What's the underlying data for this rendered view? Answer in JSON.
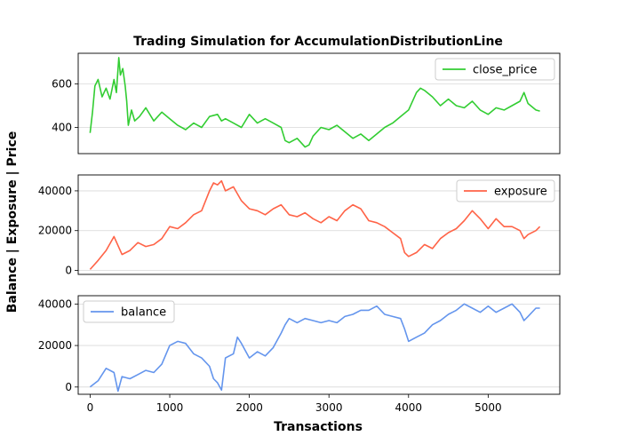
{
  "chart_data": {
    "type": "line",
    "title": "Trading Simulation for AccumulationDistributionLine",
    "xlabel": "Transactions",
    "ylabel": "Balance | Exposure | Price",
    "xlim": [
      -150,
      5900
    ],
    "xticks": [
      0,
      1000,
      2000,
      3000,
      4000,
      5000
    ],
    "grid": "horizontal",
    "panels": [
      {
        "series_name": "close_price",
        "color": "#32cd32",
        "legend": "top-right",
        "ylim": [
          280,
          740
        ],
        "yticks": [
          400,
          600
        ],
        "x": [
          0,
          30,
          60,
          100,
          150,
          200,
          250,
          300,
          330,
          360,
          380,
          410,
          440,
          460,
          480,
          520,
          560,
          620,
          700,
          800,
          900,
          1000,
          1100,
          1200,
          1300,
          1400,
          1500,
          1600,
          1650,
          1700,
          1800,
          1900,
          2000,
          2100,
          2200,
          2300,
          2400,
          2450,
          2500,
          2600,
          2700,
          2750,
          2800,
          2900,
          3000,
          3100,
          3200,
          3300,
          3400,
          3500,
          3600,
          3700,
          3800,
          3900,
          4000,
          4100,
          4150,
          4200,
          4300,
          4400,
          4500,
          4600,
          4700,
          4800,
          4900,
          5000,
          5100,
          5200,
          5300,
          5400,
          5450,
          5500,
          5600,
          5650
        ],
        "y": [
          375,
          470,
          590,
          620,
          540,
          580,
          530,
          620,
          560,
          720,
          640,
          670,
          590,
          520,
          410,
          480,
          430,
          450,
          490,
          430,
          470,
          440,
          410,
          390,
          420,
          400,
          450,
          460,
          430,
          440,
          420,
          400,
          460,
          420,
          440,
          420,
          400,
          340,
          330,
          350,
          310,
          320,
          360,
          400,
          390,
          410,
          380,
          350,
          370,
          340,
          370,
          400,
          420,
          450,
          480,
          560,
          580,
          570,
          540,
          500,
          530,
          500,
          490,
          520,
          480,
          460,
          490,
          480,
          500,
          520,
          560,
          510,
          480,
          475
        ]
      },
      {
        "series_name": "exposure",
        "color": "#ff6347",
        "legend": "top-right",
        "ylim": [
          -2000,
          48000
        ],
        "yticks": [
          0,
          20000,
          40000
        ],
        "x": [
          0,
          100,
          200,
          300,
          400,
          500,
          600,
          700,
          800,
          900,
          1000,
          1100,
          1200,
          1300,
          1400,
          1500,
          1550,
          1600,
          1650,
          1700,
          1800,
          1900,
          2000,
          2100,
          2200,
          2300,
          2400,
          2500,
          2600,
          2700,
          2800,
          2900,
          3000,
          3100,
          3200,
          3300,
          3400,
          3500,
          3600,
          3700,
          3800,
          3900,
          3950,
          4000,
          4100,
          4200,
          4300,
          4400,
          4500,
          4600,
          4700,
          4800,
          4900,
          5000,
          5100,
          5200,
          5300,
          5400,
          5450,
          5500,
          5600,
          5650
        ],
        "y": [
          500,
          5000,
          10000,
          17000,
          8000,
          10000,
          14000,
          12000,
          13000,
          16000,
          22000,
          21000,
          24000,
          28000,
          30000,
          40000,
          44000,
          43000,
          45000,
          40000,
          42000,
          35000,
          31000,
          30000,
          28000,
          31000,
          33000,
          28000,
          27000,
          29000,
          26000,
          24000,
          27000,
          25000,
          30000,
          33000,
          31000,
          25000,
          24000,
          22000,
          19000,
          16000,
          9000,
          7000,
          9000,
          13000,
          11000,
          16000,
          19000,
          21000,
          25000,
          30000,
          26000,
          21000,
          26000,
          22000,
          22000,
          20000,
          16000,
          18000,
          20000,
          22000
        ]
      },
      {
        "series_name": "balance",
        "color": "#6495ed",
        "legend": "top-left",
        "ylim": [
          -3500,
          44000
        ],
        "yticks": [
          0,
          20000,
          40000
        ],
        "x": [
          0,
          100,
          200,
          300,
          350,
          400,
          500,
          600,
          700,
          800,
          900,
          1000,
          1100,
          1200,
          1300,
          1400,
          1500,
          1550,
          1600,
          1650,
          1700,
          1800,
          1850,
          1900,
          2000,
          2100,
          2200,
          2300,
          2400,
          2450,
          2500,
          2600,
          2700,
          2800,
          2900,
          3000,
          3100,
          3200,
          3300,
          3400,
          3500,
          3600,
          3700,
          3800,
          3900,
          3950,
          4000,
          4100,
          4200,
          4300,
          4400,
          4500,
          4600,
          4700,
          4800,
          4900,
          5000,
          5100,
          5200,
          5300,
          5400,
          5450,
          5500,
          5600,
          5650
        ],
        "y": [
          0,
          3000,
          9000,
          7000,
          -2000,
          5000,
          4000,
          6000,
          8000,
          7000,
          11000,
          20000,
          22000,
          21000,
          16000,
          14000,
          10000,
          4000,
          2000,
          -1500,
          14000,
          16000,
          24000,
          21000,
          14000,
          17000,
          15000,
          19000,
          26000,
          30000,
          33000,
          31000,
          33000,
          32000,
          31000,
          32000,
          31000,
          34000,
          35000,
          37000,
          37000,
          39000,
          35000,
          34000,
          33000,
          28000,
          22000,
          24000,
          26000,
          30000,
          32000,
          35000,
          37000,
          40000,
          38000,
          36000,
          39000,
          36000,
          38000,
          40000,
          36000,
          32000,
          34000,
          38000,
          38000
        ]
      }
    ]
  }
}
